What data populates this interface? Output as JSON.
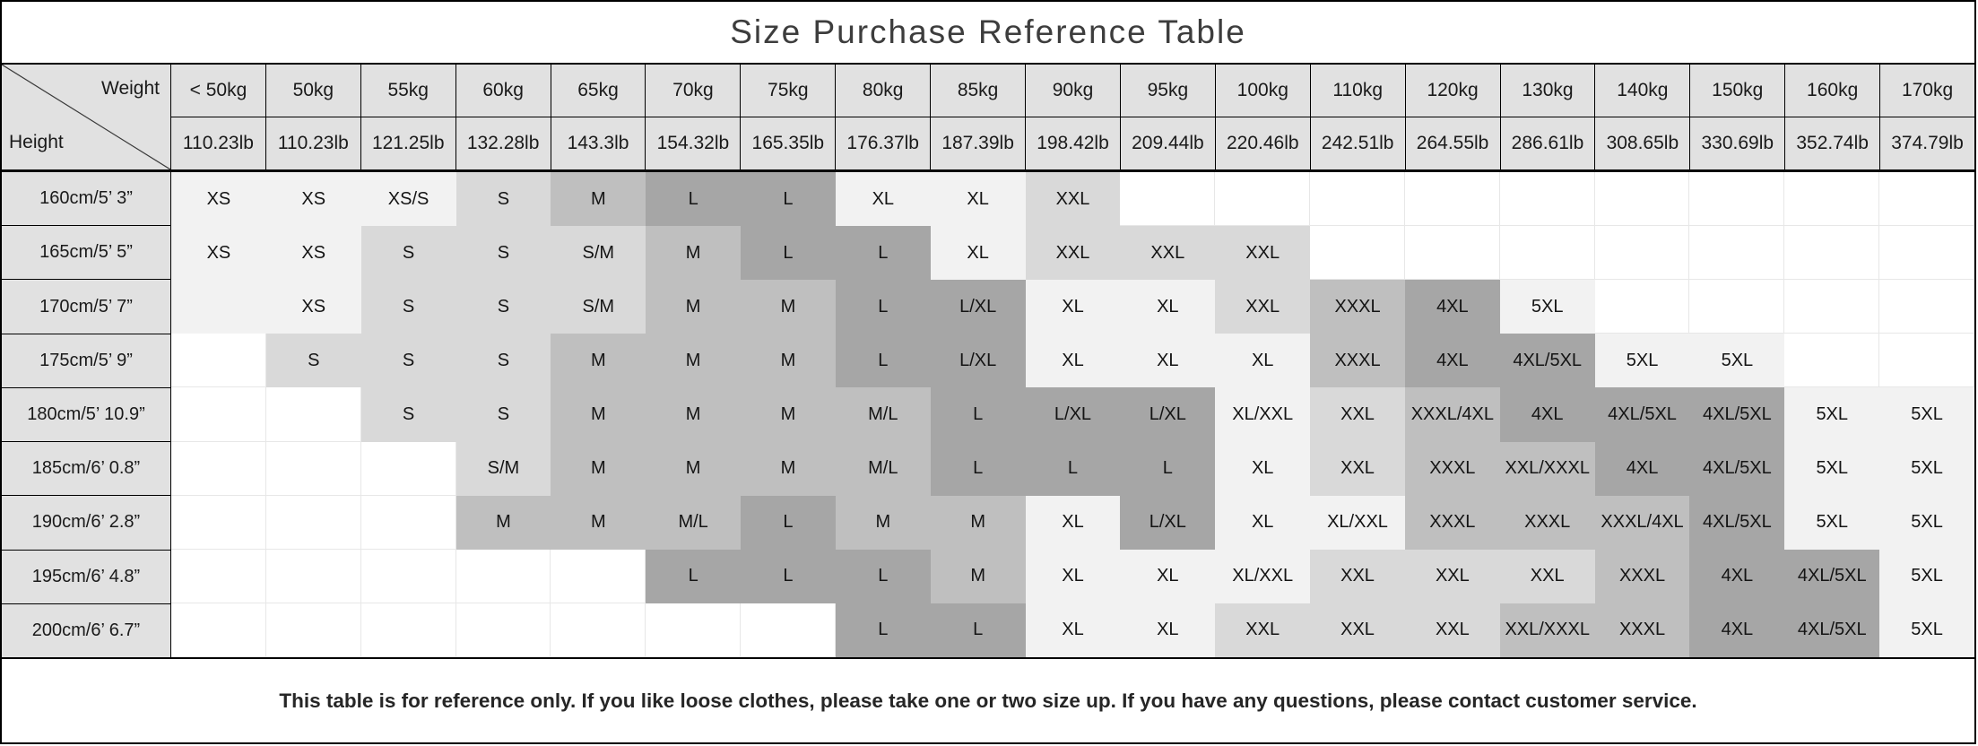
{
  "title": "Size Purchase Reference Table",
  "corner": {
    "weight": "Weight",
    "height": "Height"
  },
  "weights_kg": [
    "< 50kg",
    "50kg",
    "55kg",
    "60kg",
    "65kg",
    "70kg",
    "75kg",
    "80kg",
    "85kg",
    "90kg",
    "95kg",
    "100kg",
    "110kg",
    "120kg",
    "130kg",
    "140kg",
    "150kg",
    "160kg",
    "170kg"
  ],
  "weights_lb": [
    "110.23lb",
    "110.23lb",
    "121.25lb",
    "132.28lb",
    "143.3lb",
    "154.32lb",
    "165.35lb",
    "176.37lb",
    "187.39lb",
    "198.42lb",
    "209.44lb",
    "220.46lb",
    "242.51lb",
    "264.55lb",
    "286.61lb",
    "308.65lb",
    "330.69lb",
    "352.74lb",
    "374.79lb"
  ],
  "fill_levels": {
    "0": "#ffffff",
    "1": "#f2f2f2",
    "2": "#d9d9d9",
    "3": "#bfbfbf",
    "4": "#a6a6a6"
  },
  "rows": [
    {
      "height": "160cm/5’ 3”",
      "cells": [
        [
          "XS",
          1
        ],
        [
          "XS",
          1
        ],
        [
          "XS/S",
          1
        ],
        [
          "S",
          2
        ],
        [
          "M",
          3
        ],
        [
          "L",
          4
        ],
        [
          "L",
          4
        ],
        [
          "XL",
          1
        ],
        [
          "XL",
          1
        ],
        [
          "XXL",
          2
        ],
        [
          "",
          0
        ],
        [
          "",
          0
        ],
        [
          "",
          0
        ],
        [
          "",
          0
        ],
        [
          "",
          0
        ],
        [
          "",
          0
        ],
        [
          "",
          0
        ],
        [
          "",
          0
        ],
        [
          "",
          0
        ]
      ]
    },
    {
      "height": "165cm/5’ 5”",
      "cells": [
        [
          "XS",
          1
        ],
        [
          "XS",
          1
        ],
        [
          "S",
          2
        ],
        [
          "S",
          2
        ],
        [
          "S/M",
          2
        ],
        [
          "M",
          3
        ],
        [
          "L",
          4
        ],
        [
          "L",
          4
        ],
        [
          "XL",
          1
        ],
        [
          "XXL",
          2
        ],
        [
          "XXL",
          2
        ],
        [
          "XXL",
          2
        ],
        [
          "",
          0
        ],
        [
          "",
          0
        ],
        [
          "",
          0
        ],
        [
          "",
          0
        ],
        [
          "",
          0
        ],
        [
          "",
          0
        ],
        [
          "",
          0
        ]
      ]
    },
    {
      "height": "170cm/5’ 7”",
      "cells": [
        [
          "",
          1
        ],
        [
          "XS",
          1
        ],
        [
          "S",
          2
        ],
        [
          "S",
          2
        ],
        [
          "S/M",
          2
        ],
        [
          "M",
          3
        ],
        [
          "M",
          3
        ],
        [
          "L",
          4
        ],
        [
          "L/XL",
          4
        ],
        [
          "XL",
          1
        ],
        [
          "XL",
          1
        ],
        [
          "XXL",
          2
        ],
        [
          "XXXL",
          3
        ],
        [
          "4XL",
          4
        ],
        [
          "5XL",
          1
        ],
        [
          "",
          0
        ],
        [
          "",
          0
        ],
        [
          "",
          0
        ],
        [
          "",
          0
        ]
      ]
    },
    {
      "height": "175cm/5’ 9”",
      "cells": [
        [
          "",
          0
        ],
        [
          "S",
          2
        ],
        [
          "S",
          2
        ],
        [
          "S",
          2
        ],
        [
          "M",
          3
        ],
        [
          "M",
          3
        ],
        [
          "M",
          3
        ],
        [
          "L",
          4
        ],
        [
          "L/XL",
          4
        ],
        [
          "XL",
          1
        ],
        [
          "XL",
          1
        ],
        [
          "XL",
          1
        ],
        [
          "XXXL",
          3
        ],
        [
          "4XL",
          4
        ],
        [
          "4XL/5XL",
          4
        ],
        [
          "5XL",
          1
        ],
        [
          "5XL",
          1
        ],
        [
          "",
          0
        ],
        [
          "",
          0
        ]
      ]
    },
    {
      "height": "180cm/5’ 10.9”",
      "cells": [
        [
          "",
          0
        ],
        [
          "",
          0
        ],
        [
          "S",
          2
        ],
        [
          "S",
          2
        ],
        [
          "M",
          3
        ],
        [
          "M",
          3
        ],
        [
          "M",
          3
        ],
        [
          "M/L",
          3
        ],
        [
          "L",
          4
        ],
        [
          "L/XL",
          4
        ],
        [
          "L/XL",
          4
        ],
        [
          "XL/XXL",
          1
        ],
        [
          "XXL",
          2
        ],
        [
          "XXXL/4XL",
          3
        ],
        [
          "4XL",
          4
        ],
        [
          "4XL/5XL",
          4
        ],
        [
          "4XL/5XL",
          4
        ],
        [
          "5XL",
          1
        ],
        [
          "5XL",
          1
        ]
      ]
    },
    {
      "height": "185cm/6’ 0.8”",
      "cells": [
        [
          "",
          0
        ],
        [
          "",
          0
        ],
        [
          "",
          0
        ],
        [
          "S/M",
          2
        ],
        [
          "M",
          3
        ],
        [
          "M",
          3
        ],
        [
          "M",
          3
        ],
        [
          "M/L",
          3
        ],
        [
          "L",
          4
        ],
        [
          "L",
          4
        ],
        [
          "L",
          4
        ],
        [
          "XL",
          1
        ],
        [
          "XXL",
          2
        ],
        [
          "XXXL",
          3
        ],
        [
          "XXL/XXXL",
          3
        ],
        [
          "4XL",
          4
        ],
        [
          "4XL/5XL",
          4
        ],
        [
          "5XL",
          1
        ],
        [
          "5XL",
          1
        ]
      ]
    },
    {
      "height": "190cm/6’ 2.8”",
      "cells": [
        [
          "",
          0
        ],
        [
          "",
          0
        ],
        [
          "",
          0
        ],
        [
          "M",
          3
        ],
        [
          "M",
          3
        ],
        [
          "M/L",
          3
        ],
        [
          "L",
          4
        ],
        [
          "M",
          3
        ],
        [
          "M",
          3
        ],
        [
          "XL",
          1
        ],
        [
          "L/XL",
          4
        ],
        [
          "XL",
          1
        ],
        [
          "XL/XXL",
          1
        ],
        [
          "XXXL",
          3
        ],
        [
          "XXXL",
          3
        ],
        [
          "XXXL/4XL",
          3
        ],
        [
          "4XL/5XL",
          4
        ],
        [
          "5XL",
          1
        ],
        [
          "5XL",
          1
        ]
      ]
    },
    {
      "height": "195cm/6’ 4.8”",
      "cells": [
        [
          "",
          0
        ],
        [
          "",
          0
        ],
        [
          "",
          0
        ],
        [
          "",
          0
        ],
        [
          "",
          0
        ],
        [
          "L",
          4
        ],
        [
          "L",
          4
        ],
        [
          "L",
          4
        ],
        [
          "M",
          3
        ],
        [
          "XL",
          1
        ],
        [
          "XL",
          1
        ],
        [
          "XL/XXL",
          1
        ],
        [
          "XXL",
          2
        ],
        [
          "XXL",
          2
        ],
        [
          "XXL",
          2
        ],
        [
          "XXXL",
          3
        ],
        [
          "4XL",
          4
        ],
        [
          "4XL/5XL",
          4
        ],
        [
          "5XL",
          1
        ]
      ]
    },
    {
      "height": "200cm/6’ 6.7”",
      "cells": [
        [
          "",
          0
        ],
        [
          "",
          0
        ],
        [
          "",
          0
        ],
        [
          "",
          0
        ],
        [
          "",
          0
        ],
        [
          "",
          0
        ],
        [
          "",
          0
        ],
        [
          "L",
          4
        ],
        [
          "L",
          4
        ],
        [
          "XL",
          1
        ],
        [
          "XL",
          1
        ],
        [
          "XXL",
          2
        ],
        [
          "XXL",
          2
        ],
        [
          "XXL",
          2
        ],
        [
          "XXL/XXXL",
          3
        ],
        [
          "XXXL",
          3
        ],
        [
          "4XL",
          4
        ],
        [
          "4XL/5XL",
          4
        ],
        [
          "5XL",
          1
        ]
      ]
    }
  ],
  "footer": "This table is for reference only. If you like loose clothes, please take one or two size up. If you have any questions, please contact customer service."
}
